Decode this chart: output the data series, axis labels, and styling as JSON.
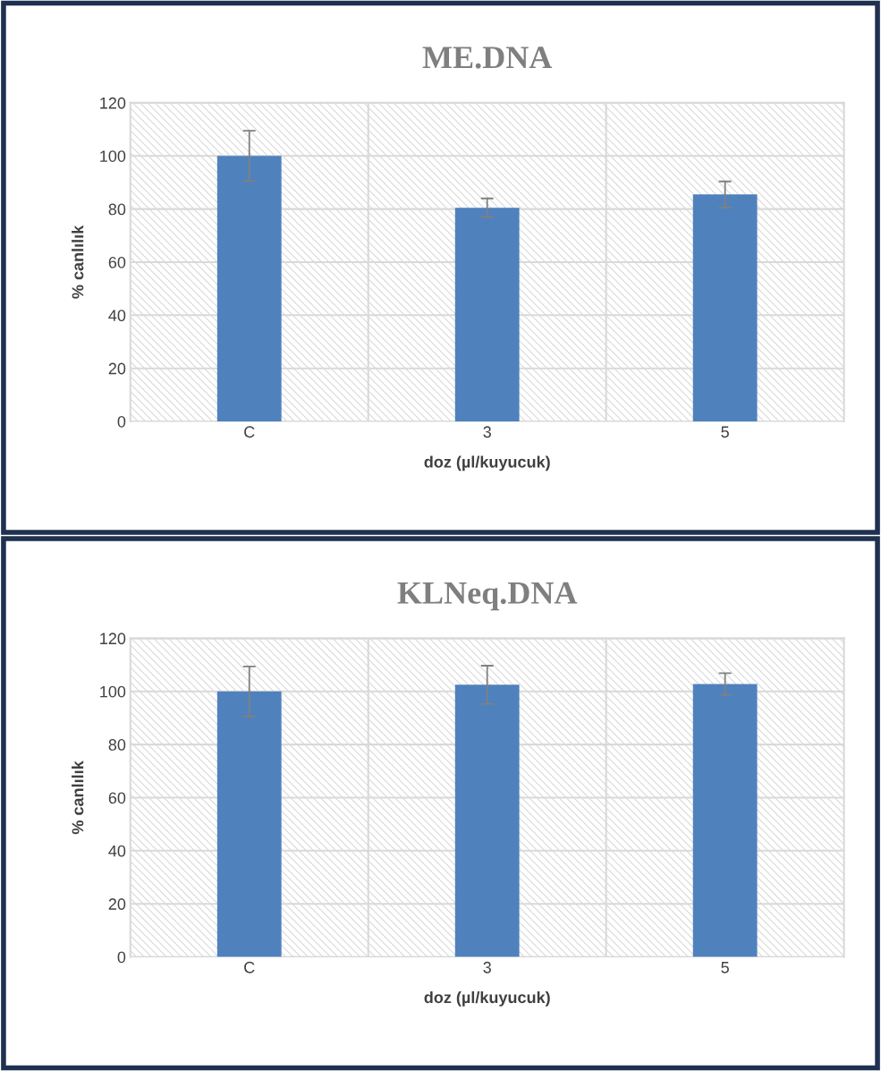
{
  "chart_data": [
    {
      "type": "bar",
      "title": "ME.DNA",
      "xlabel": "doz (µl/kuyucuk)",
      "ylabel": "% canlılık",
      "categories": [
        "C",
        "3",
        "5"
      ],
      "values": [
        100,
        80.5,
        85.5
      ],
      "errors": [
        9.5,
        3.5,
        4.9
      ],
      "color": "#4f81bd",
      "ylim": [
        0,
        120
      ],
      "yticks": [
        0,
        20,
        40,
        60,
        80,
        100,
        120
      ],
      "grid": true,
      "legend": false
    },
    {
      "type": "bar",
      "title": "KLNeq.DNA",
      "xlabel": "doz (µl/kuyucuk)",
      "ylabel": "% canlılık",
      "categories": [
        "C",
        "3",
        "5"
      ],
      "values": [
        100,
        102.5,
        102.8
      ],
      "errors": [
        9.4,
        7.2,
        4.1
      ],
      "color": "#4f81bd",
      "ylim": [
        0,
        120
      ],
      "yticks": [
        0,
        20,
        40,
        60,
        80,
        100,
        120
      ],
      "grid": true,
      "legend": false
    }
  ]
}
